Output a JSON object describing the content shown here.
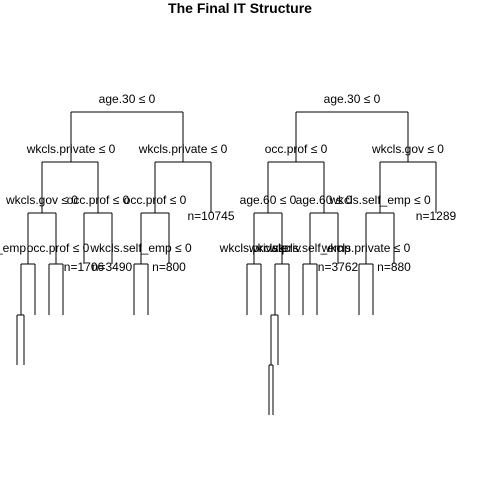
{
  "title": "The Final IT Structure",
  "left_tree": {
    "root": "age.30 ≤ 0",
    "level2": [
      "wkcls.private ≤ 0",
      "wkcls.private ≤ 0"
    ],
    "level3": [
      "wkcls.gov ≤ 0",
      "occ.prof ≤ 0",
      "occ.prof ≤ 0"
    ],
    "level3_leaf": "n=10745",
    "level4": [
      "s.self_emp",
      "occ.prof ≤ 0",
      "wkcls.self_emp ≤ 0"
    ],
    "level4_leaves": [
      "n=1706",
      "n=3490",
      "n=800"
    ]
  },
  "right_tree": {
    "root": "age.30 ≤ 0",
    "level2": [
      "occ.prof ≤ 0",
      "wkcls.gov ≤ 0"
    ],
    "level3": [
      "age.60 ≤ 0",
      "age.60 ≤ 0",
      "wkcls.self_emp ≤ 0"
    ],
    "level3_leaf": "n=1289",
    "level4": [
      "wkcls.private",
      "wkcls.priv",
      "wkcls.self_emp",
      "wkcls.private ≤ 0"
    ],
    "level4_leaves": [
      "n=3762",
      "n=880"
    ]
  }
}
